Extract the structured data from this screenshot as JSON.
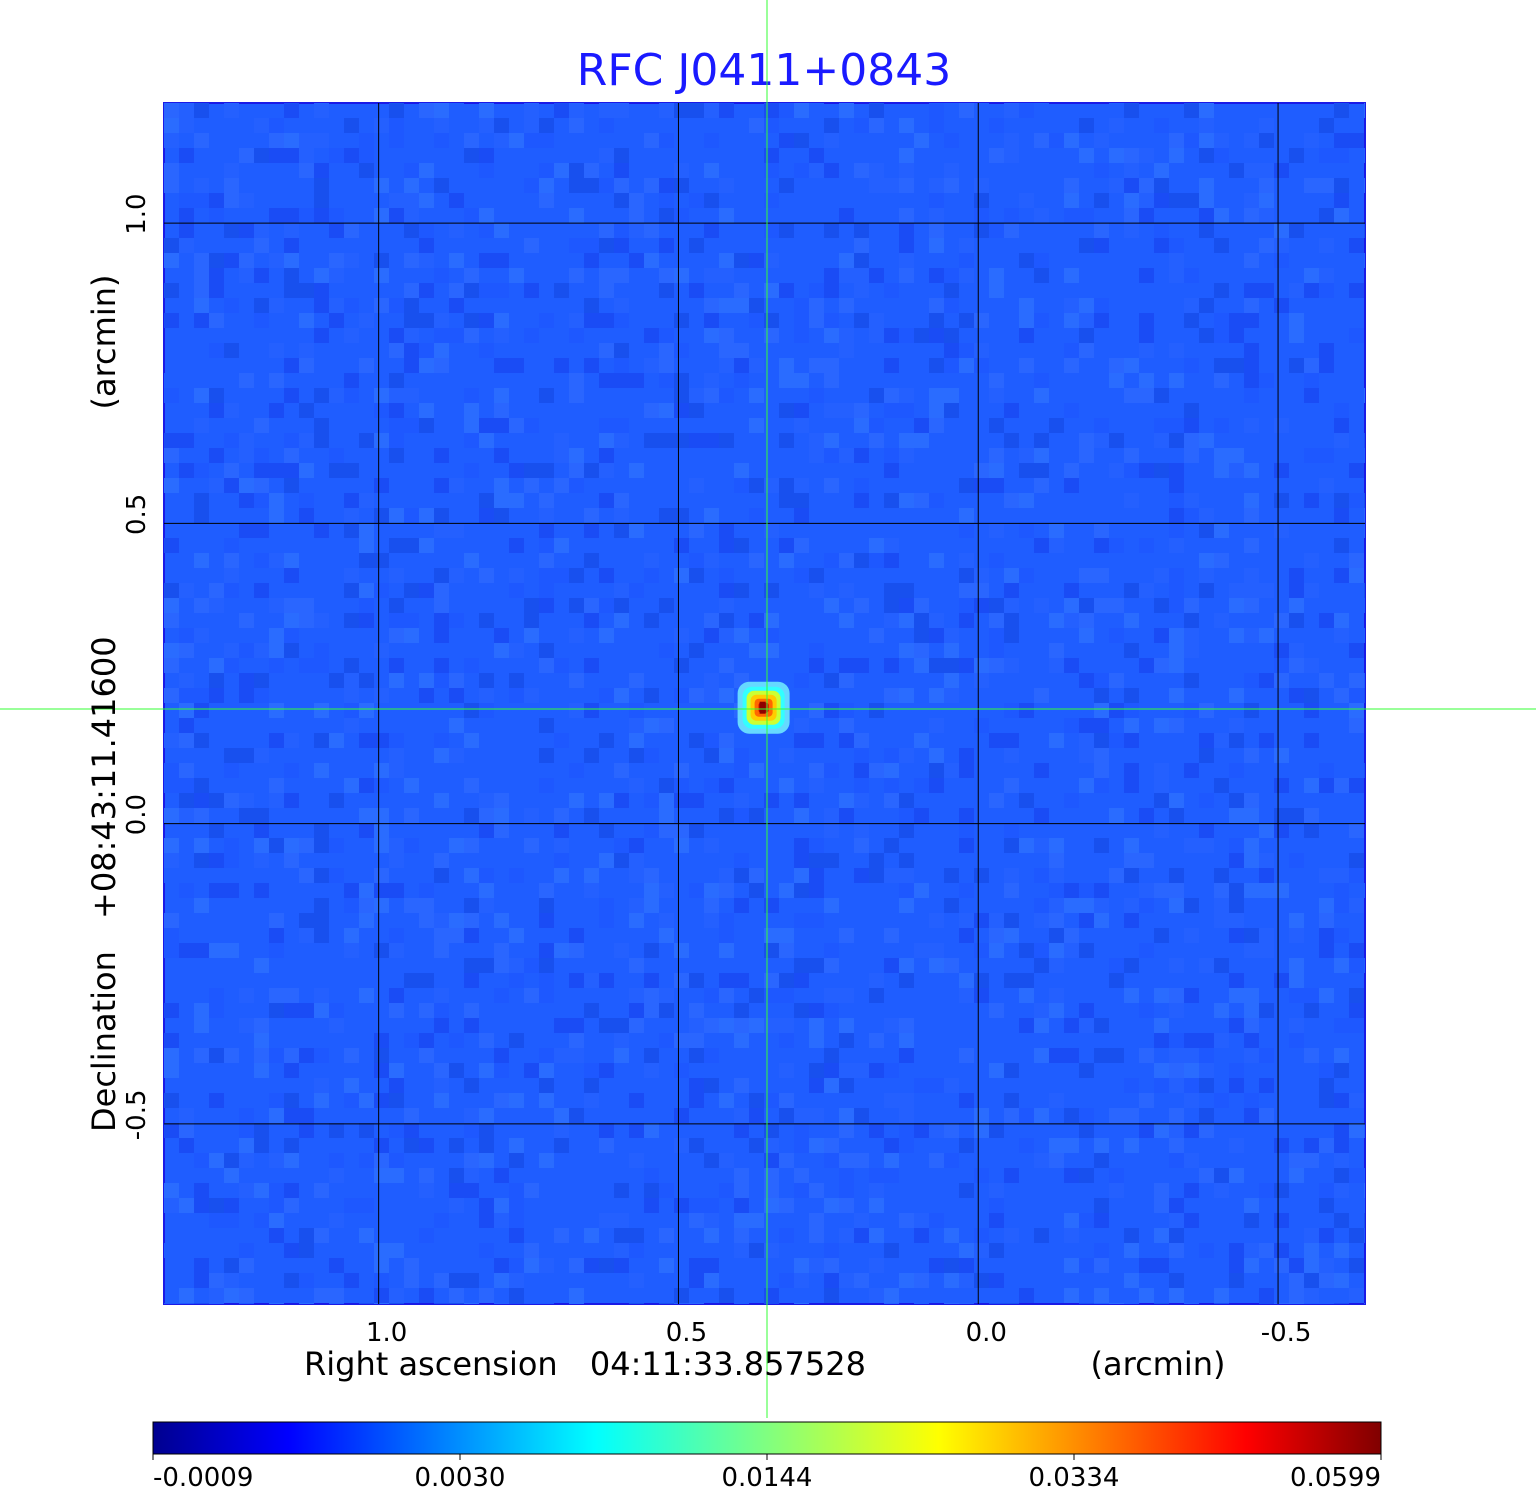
{
  "chart_data": {
    "type": "heatmap",
    "title": "RFC J0411+0843",
    "colormap": "jet",
    "background_color": "#1f5dff",
    "crosshair_color": "#33ff33",
    "grid": true,
    "grid_color": "#000000",
    "x_axis": {
      "label_name": "Right ascension",
      "label_value": "04:11:33.857528",
      "unit": "(arcmin)",
      "ticks": [
        1.0,
        0.5,
        0.0,
        -0.5
      ],
      "tick_labels": [
        "1.0",
        "0.5",
        "0.0",
        "-0.5"
      ],
      "range": [
        1.358,
        -0.645
      ]
    },
    "y_axis": {
      "label_name": "Declination",
      "label_value": "+08:43:11.41600",
      "unit": "(arcmin)",
      "ticks": [
        1.0,
        0.5,
        0.0,
        -0.5
      ],
      "tick_labels": [
        "1.0",
        "0.5",
        "0.0",
        "-0.5"
      ],
      "range": [
        -0.8,
        1.2
      ]
    },
    "source": {
      "x": 0.358,
      "y": 0.193,
      "peak": 0.0599
    },
    "colorbar": {
      "ticks": [
        "-0.0009",
        "0.0030",
        "0.0144",
        "0.0334",
        "0.0599"
      ],
      "min": -0.0009,
      "max": 0.0599
    }
  }
}
